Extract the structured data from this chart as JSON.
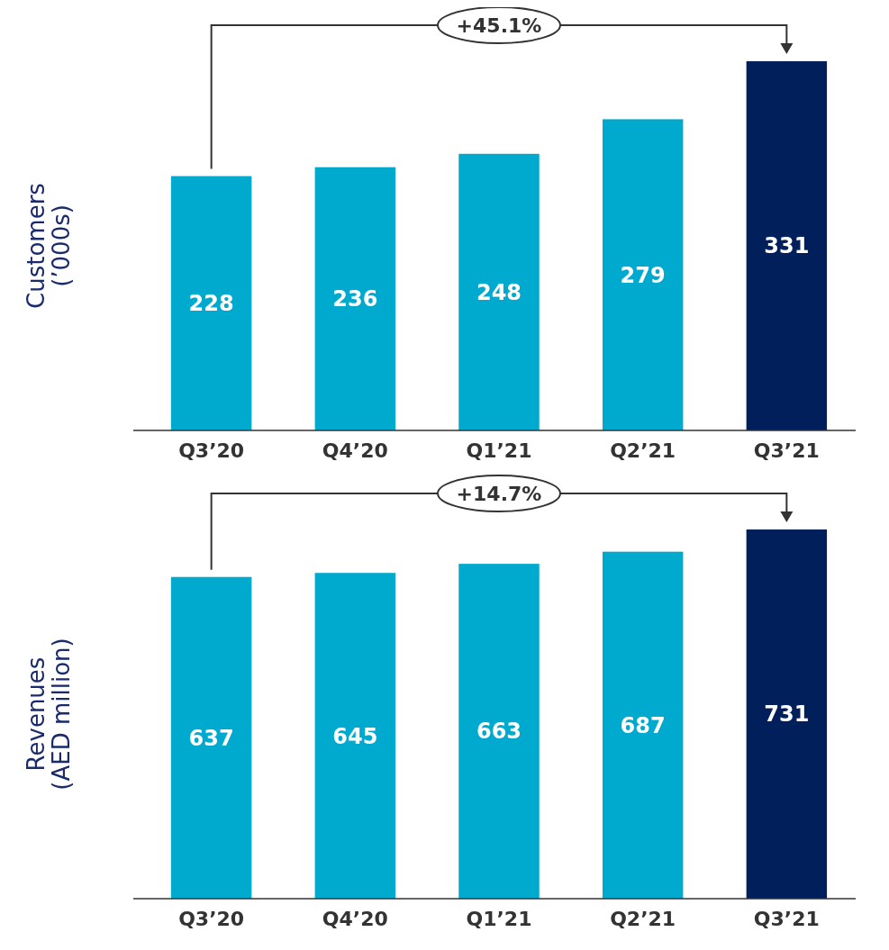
{
  "chart_data": [
    {
      "type": "bar",
      "ylabel": "Customers\n(’000s)",
      "categories": [
        "Q3’20",
        "Q4’20",
        "Q1’21",
        "Q2’21",
        "Q3’21"
      ],
      "values": [
        228,
        236,
        248,
        279,
        331
      ],
      "colors": [
        "#00a9ce",
        "#00a9ce",
        "#00a9ce",
        "#00a9ce",
        "#001f5b"
      ],
      "data_labels": true,
      "annotations": [
        "+45.1%"
      ]
    },
    {
      "type": "bar",
      "ylabel": "Revenues\n(AED million)",
      "categories": [
        "Q3’20",
        "Q4’20",
        "Q1’21",
        "Q2’21",
        "Q3’21"
      ],
      "values": [
        637,
        645,
        663,
        687,
        731
      ],
      "colors": [
        "#00a9ce",
        "#00a9ce",
        "#00a9ce",
        "#00a9ce",
        "#001f5b"
      ],
      "data_labels": true,
      "annotations": [
        "+14.7%"
      ]
    }
  ]
}
